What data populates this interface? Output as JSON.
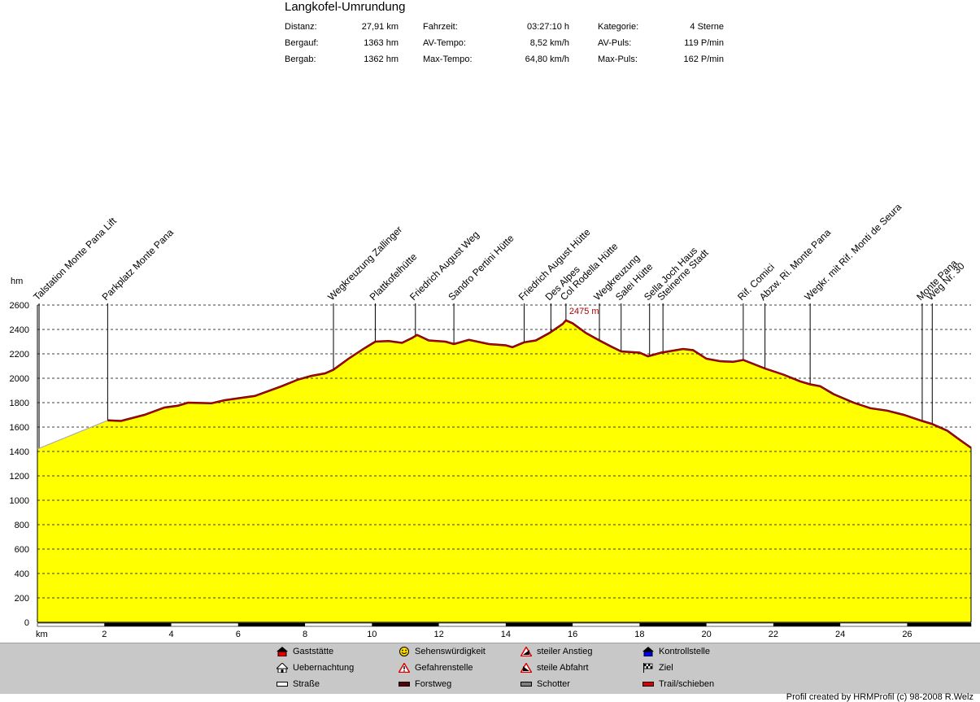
{
  "header": {
    "title": "Langkofel-Umrundung",
    "stats": [
      {
        "label": "Distanz:",
        "value": "27,91 km"
      },
      {
        "label": "Bergauf:",
        "value": "1363 hm"
      },
      {
        "label": "Bergab:",
        "value": "1362 hm"
      },
      {
        "label": "Fahrzeit:",
        "value": "03:27:10 h"
      },
      {
        "label": "AV-Tempo:",
        "value": "8,52 km/h"
      },
      {
        "label": "Max-Tempo:",
        "value": "64,80 km/h"
      },
      {
        "label": "Kategorie:",
        "value": "4 Sterne"
      },
      {
        "label": "AV-Puls:",
        "value": "119 P/min"
      },
      {
        "label": "Max-Puls:",
        "value": "162 P/min"
      }
    ]
  },
  "chart_data": {
    "type": "area",
    "title": "",
    "xlabel": "km",
    "ylabel": "hm",
    "xlim": [
      0,
      27.91
    ],
    "ylim": [
      0,
      2600
    ],
    "x_ticks": [
      2,
      4,
      6,
      8,
      10,
      12,
      14,
      16,
      18,
      20,
      22,
      24,
      26
    ],
    "y_ticks": [
      0,
      200,
      400,
      600,
      800,
      1000,
      1200,
      1400,
      1600,
      1800,
      2000,
      2200,
      2400,
      2600
    ],
    "grid": "horizontal dashed",
    "fill_color": "#ffff00",
    "line_color": "#d40000",
    "max_label": "2475 m",
    "max_point": {
      "x": 15.8,
      "y": 2475
    },
    "profile": [
      {
        "x": 0,
        "y": 1420
      },
      {
        "x": 2.1,
        "y": 1655
      },
      {
        "x": 2.5,
        "y": 1650
      },
      {
        "x": 3.2,
        "y": 1700
      },
      {
        "x": 3.8,
        "y": 1760
      },
      {
        "x": 4.2,
        "y": 1775
      },
      {
        "x": 4.5,
        "y": 1800
      },
      {
        "x": 5.2,
        "y": 1795
      },
      {
        "x": 5.6,
        "y": 1820
      },
      {
        "x": 6.5,
        "y": 1855
      },
      {
        "x": 7.3,
        "y": 1935
      },
      {
        "x": 7.8,
        "y": 1990
      },
      {
        "x": 8.2,
        "y": 2020
      },
      {
        "x": 8.6,
        "y": 2040
      },
      {
        "x": 8.85,
        "y": 2070
      },
      {
        "x": 9.3,
        "y": 2160
      },
      {
        "x": 9.8,
        "y": 2250
      },
      {
        "x": 10.1,
        "y": 2300
      },
      {
        "x": 10.5,
        "y": 2305
      },
      {
        "x": 10.9,
        "y": 2290
      },
      {
        "x": 11.2,
        "y": 2330
      },
      {
        "x": 11.35,
        "y": 2355
      },
      {
        "x": 11.7,
        "y": 2310
      },
      {
        "x": 12.2,
        "y": 2300
      },
      {
        "x": 12.45,
        "y": 2280
      },
      {
        "x": 12.9,
        "y": 2315
      },
      {
        "x": 13.5,
        "y": 2280
      },
      {
        "x": 14.0,
        "y": 2270
      },
      {
        "x": 14.2,
        "y": 2255
      },
      {
        "x": 14.55,
        "y": 2295
      },
      {
        "x": 14.9,
        "y": 2310
      },
      {
        "x": 15.3,
        "y": 2370
      },
      {
        "x": 15.7,
        "y": 2445
      },
      {
        "x": 15.8,
        "y": 2475
      },
      {
        "x": 16.0,
        "y": 2450
      },
      {
        "x": 16.4,
        "y": 2370
      },
      {
        "x": 16.8,
        "y": 2310
      },
      {
        "x": 17.15,
        "y": 2260
      },
      {
        "x": 17.45,
        "y": 2220
      },
      {
        "x": 18.0,
        "y": 2210
      },
      {
        "x": 18.25,
        "y": 2180
      },
      {
        "x": 18.65,
        "y": 2210
      },
      {
        "x": 19.3,
        "y": 2240
      },
      {
        "x": 19.6,
        "y": 2230
      },
      {
        "x": 20.0,
        "y": 2160
      },
      {
        "x": 20.4,
        "y": 2140
      },
      {
        "x": 20.8,
        "y": 2135
      },
      {
        "x": 21.1,
        "y": 2150
      },
      {
        "x": 21.75,
        "y": 2080
      },
      {
        "x": 22.3,
        "y": 2030
      },
      {
        "x": 22.8,
        "y": 1975
      },
      {
        "x": 23.1,
        "y": 1950
      },
      {
        "x": 23.4,
        "y": 1935
      },
      {
        "x": 23.8,
        "y": 1870
      },
      {
        "x": 24.4,
        "y": 1800
      },
      {
        "x": 24.9,
        "y": 1755
      },
      {
        "x": 25.4,
        "y": 1735
      },
      {
        "x": 25.9,
        "y": 1700
      },
      {
        "x": 26.45,
        "y": 1650
      },
      {
        "x": 26.75,
        "y": 1625
      },
      {
        "x": 27.2,
        "y": 1570
      },
      {
        "x": 27.6,
        "y": 1490
      },
      {
        "x": 27.91,
        "y": 1430
      }
    ],
    "waypoints": [
      {
        "x": 0.05,
        "name": "Talstation Monte Pana Lift"
      },
      {
        "x": 2.1,
        "name": "Parkplatz Monte Pana"
      },
      {
        "x": 8.85,
        "name": "Wegkreuzung Zallinger"
      },
      {
        "x": 10.1,
        "name": "Plattkofelhütte"
      },
      {
        "x": 11.3,
        "name": "Friedrich August Weg"
      },
      {
        "x": 12.45,
        "name": "Sandro Pertini Hütte"
      },
      {
        "x": 14.55,
        "name": "Friedrich August Hütte"
      },
      {
        "x": 15.35,
        "name": "Des Alpes"
      },
      {
        "x": 15.8,
        "name": "Col Rodella Hütte"
      },
      {
        "x": 16.8,
        "name": "Wegkreuzung"
      },
      {
        "x": 17.45,
        "name": "Salei Hütte"
      },
      {
        "x": 18.3,
        "name": "Sella Joch Haus"
      },
      {
        "x": 18.7,
        "name": "Steinerne Stadt"
      },
      {
        "x": 21.1,
        "name": "Rif. Comici"
      },
      {
        "x": 21.75,
        "name": "Abzw. Ri. Monte Pana"
      },
      {
        "x": 23.1,
        "name": "Wegkr. mit Rif. Monti de Seura"
      },
      {
        "x": 26.45,
        "name": "Monte Pana"
      },
      {
        "x": 26.75,
        "name": "Weg Nr. 30"
      }
    ],
    "surface_segments": [
      {
        "from": 2.0,
        "to": 4.0,
        "type": "Forstweg"
      },
      {
        "from": 6.0,
        "to": 8.0,
        "type": "Forstweg"
      },
      {
        "from": 10.0,
        "to": 12.0,
        "type": "Forstweg"
      },
      {
        "from": 14.0,
        "to": 16.0,
        "type": "Forstweg"
      },
      {
        "from": 18.0,
        "to": 20.0,
        "type": "Forstweg"
      },
      {
        "from": 22.0,
        "to": 24.0,
        "type": "Forstweg"
      },
      {
        "from": 26.0,
        "to": 27.91,
        "type": "Forstweg"
      }
    ]
  },
  "legend": {
    "items": [
      {
        "label": "Gaststätte",
        "icon": "house-red-icon"
      },
      {
        "label": "Uebernachtung",
        "icon": "hut-icon"
      },
      {
        "label": "Straße",
        "icon": "road-swatch"
      },
      {
        "label": "Sehenswürdigkeit",
        "icon": "smiley-icon"
      },
      {
        "label": "Gefahrenstelle",
        "icon": "warning-icon"
      },
      {
        "label": "Forstweg",
        "icon": "forest-road-swatch"
      },
      {
        "label": "steiler Anstieg",
        "icon": "steep-ascent-icon"
      },
      {
        "label": "steile Abfahrt",
        "icon": "steep-descent-icon"
      },
      {
        "label": "Schotter",
        "icon": "gravel-swatch"
      },
      {
        "label": "Kontrollstelle",
        "icon": "checkpoint-icon"
      },
      {
        "label": "Ziel",
        "icon": "finish-flag-icon"
      },
      {
        "label": "Trail/schieben",
        "icon": "trail-swatch"
      }
    ]
  },
  "footer": {
    "credit": "Profil created by HRMProfil (c) 98-2008 R.Welz"
  }
}
